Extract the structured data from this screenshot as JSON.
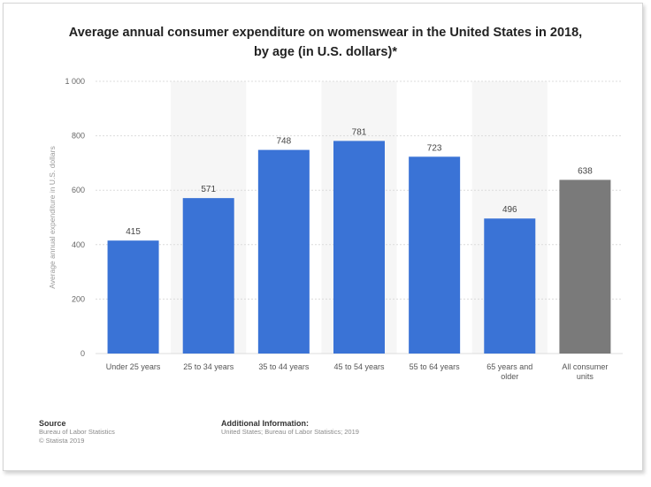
{
  "chart_data": {
    "type": "bar",
    "title_lines": [
      "Average annual consumer expenditure on womenswear in the United States in 2018,",
      "by age (in U.S. dollars)*"
    ],
    "ylabel": "Average annual expenditure in U.S. dollars",
    "xlabel": "",
    "ylim": [
      0,
      1000
    ],
    "yticks": [
      0,
      200,
      400,
      600,
      800,
      1000
    ],
    "ytick_labels": [
      "0",
      "200",
      "400",
      "600",
      "800",
      "1 000"
    ],
    "categories": [
      [
        "Under 25 years"
      ],
      [
        "25 to 34 years"
      ],
      [
        "35 to 44 years"
      ],
      [
        "45 to 54 years"
      ],
      [
        "55 to 64 years"
      ],
      [
        "65 years and",
        "older"
      ],
      [
        "All consumer",
        "units"
      ]
    ],
    "values": [
      415,
      571,
      748,
      781,
      723,
      496,
      638
    ],
    "value_labels": [
      "415",
      "571",
      "748",
      "781",
      "723",
      "496",
      "638"
    ],
    "bar_colors": [
      "#3a73d6",
      "#3a73d6",
      "#3a73d6",
      "#3a73d6",
      "#3a73d6",
      "#3a73d6",
      "#7a7a7a"
    ],
    "grid": true,
    "legend": "none"
  },
  "footer": {
    "source_heading": "Source",
    "source_lines": [
      "Bureau of Labor Statistics",
      "© Statista 2019"
    ],
    "info_heading": "Additional Information:",
    "info_lines": [
      "United States; Bureau of Labor Statistics; 2019"
    ]
  }
}
